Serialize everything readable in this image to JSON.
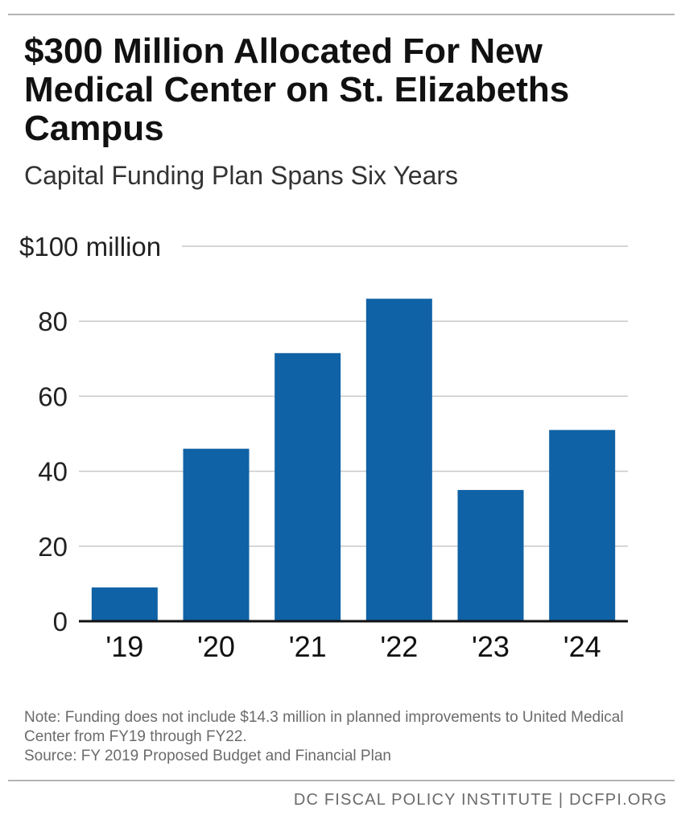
{
  "title": "$300 Million Allocated For New Medical Center on St. Elizabeths Campus",
  "subtitle": "Capital Funding Plan Spans Six Years",
  "note_line1": "Note: Funding does not include $14.3 million in planned improvements to United Medical Center from FY19 through FY22.",
  "note_line2": "Source: FY 2019 Proposed Budget and Financial Plan",
  "footer": "DC FISCAL POLICY INSTITUTE | DCFPI.ORG",
  "colors": {
    "bar": "#0f62a6",
    "gridline": "#c8c8c8",
    "axis": "#111111"
  },
  "chart_data": {
    "type": "bar",
    "title": "$300 Million Allocated For New Medical Center on St. Elizabeths Campus",
    "subtitle": "Capital Funding Plan Spans Six Years",
    "xlabel": "",
    "ylabel": "",
    "categories": [
      "'19",
      "'20",
      "'21",
      "'22",
      "'23",
      "'24"
    ],
    "values": [
      9,
      46,
      71.5,
      86,
      35,
      51
    ],
    "ylim": [
      0,
      100
    ],
    "yticks": [
      0,
      20,
      40,
      60,
      80,
      100
    ],
    "ytick_labels": [
      "0",
      "20",
      "40",
      "60",
      "80",
      "$100 million"
    ],
    "grid": true,
    "legend": "none"
  }
}
